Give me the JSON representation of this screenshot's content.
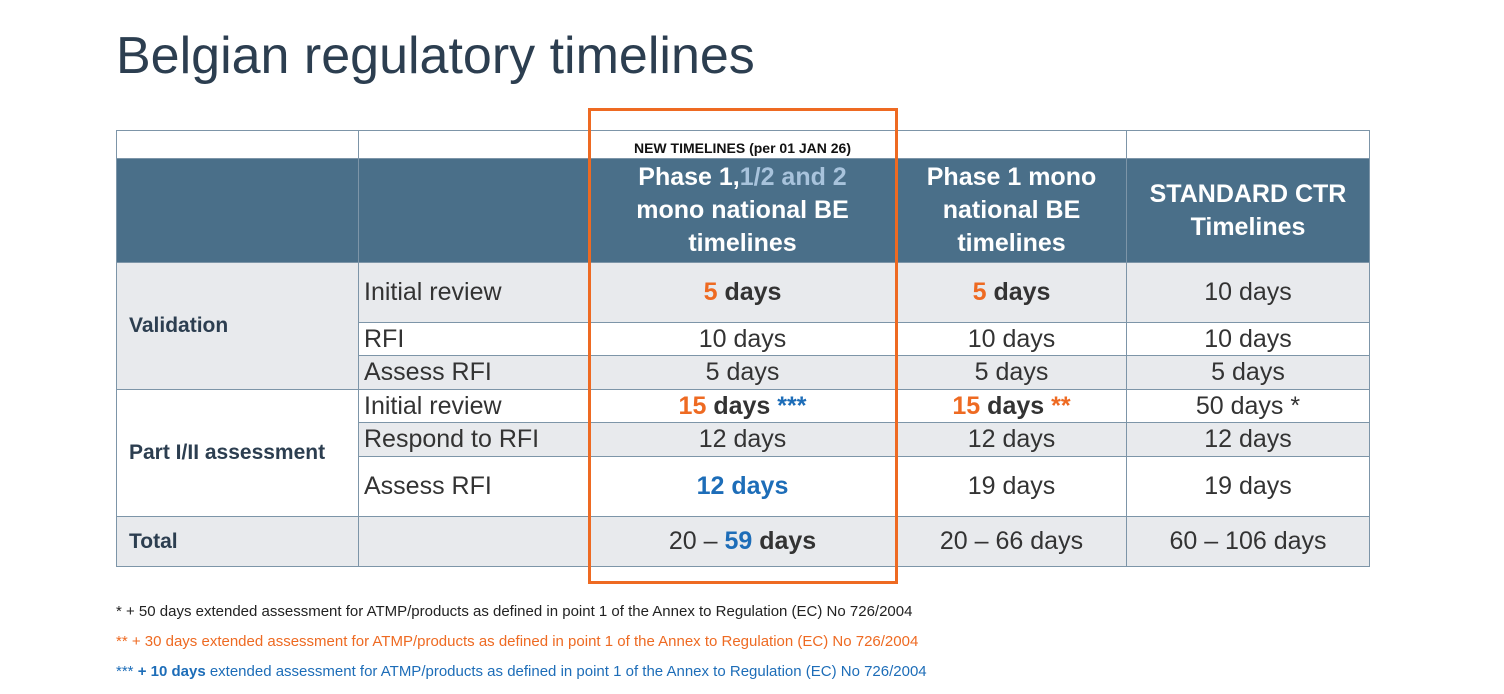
{
  "title": "Belgian regulatory timelines",
  "table": {
    "note": "NEW TIMELINES (per 01 JAN 26)",
    "headers": [
      [
        "Phase 1,",
        "1/2 and 2",
        "mono national BE timelines"
      ],
      [
        "Phase 1 mono national BE timelines"
      ],
      [
        "STANDARD CTR Timelines"
      ]
    ],
    "groups": [
      {
        "label": "Validation",
        "rows": [
          {
            "step": "Initial review",
            "cells": [
              [
                "5",
                "days"
              ],
              [
                "5",
                "days"
              ],
              [
                "10 days"
              ]
            ]
          },
          {
            "step": "RFI",
            "cells": [
              [
                "10 days"
              ],
              [
                "10 days"
              ],
              [
                "10 days"
              ]
            ]
          },
          {
            "step": "Assess RFI",
            "cells": [
              [
                "5 days"
              ],
              [
                "5 days"
              ],
              [
                "5 days"
              ]
            ]
          }
        ]
      },
      {
        "label": "Part I/II assessment",
        "rows": [
          {
            "step": "Initial review",
            "cells": [
              [
                "15",
                "days",
                "***"
              ],
              [
                "15",
                "days",
                "**"
              ],
              [
                "50 days *"
              ]
            ]
          },
          {
            "step": "Respond to RFI",
            "cells": [
              [
                "12 days"
              ],
              [
                "12 days"
              ],
              [
                "12 days"
              ]
            ]
          },
          {
            "step": "Assess RFI",
            "cells": [
              [
                "12 days"
              ],
              [
                "19 days"
              ],
              [
                "19 days"
              ]
            ]
          }
        ]
      }
    ],
    "total": {
      "label": "Total",
      "cells": [
        [
          "20 –",
          "59",
          "days"
        ],
        [
          "20 – 66 days"
        ],
        [
          "60 – 106 days"
        ]
      ]
    }
  },
  "footnotes": [
    [
      "* + 50 days extended assessment for ATMP/products as defined in point 1 of the Annex to Regulation (EC) No 726/2004"
    ],
    [
      "** + 30 days extended assessment for ATMP/products as defined in point 1 of the Annex to Regulation (EC) No 726/2004"
    ],
    [
      "***",
      "+ 10 days",
      "extended assessment for ATMP/products as defined in point 1 of the Annex to Regulation (EC) No 726/2004"
    ]
  ]
}
